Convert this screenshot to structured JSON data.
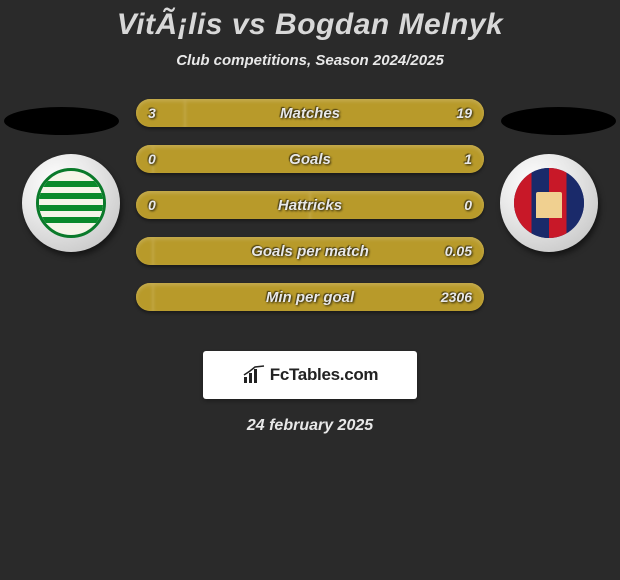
{
  "title": {
    "left": "VitÃ¡lis",
    "vs": "vs",
    "right": "Bogdan Melnyk"
  },
  "subtitle": "Club competitions, Season 2024/2025",
  "bars": [
    {
      "label": "Matches",
      "left_val": "3",
      "right_val": "19",
      "left_pct": 14,
      "right_pct": 86
    },
    {
      "label": "Goals",
      "left_val": "0",
      "right_val": "1",
      "left_pct": 5,
      "right_pct": 95
    },
    {
      "label": "Hattricks",
      "left_val": "0",
      "right_val": "0",
      "left_pct": 50,
      "right_pct": 50
    },
    {
      "label": "Goals per match",
      "left_val": "",
      "right_val": "0.05",
      "left_pct": 5,
      "right_pct": 95
    },
    {
      "label": "Min per goal",
      "left_val": "",
      "right_val": "2306",
      "left_pct": 5,
      "right_pct": 95
    }
  ],
  "logo_text": "FcTables.com",
  "date": "24 february 2025",
  "colors": {
    "page_bg": "#2a2a2a",
    "bar_bg": "#a08a2a",
    "bar_fill": "#b89a2a",
    "text_light": "#e8e8e8"
  }
}
